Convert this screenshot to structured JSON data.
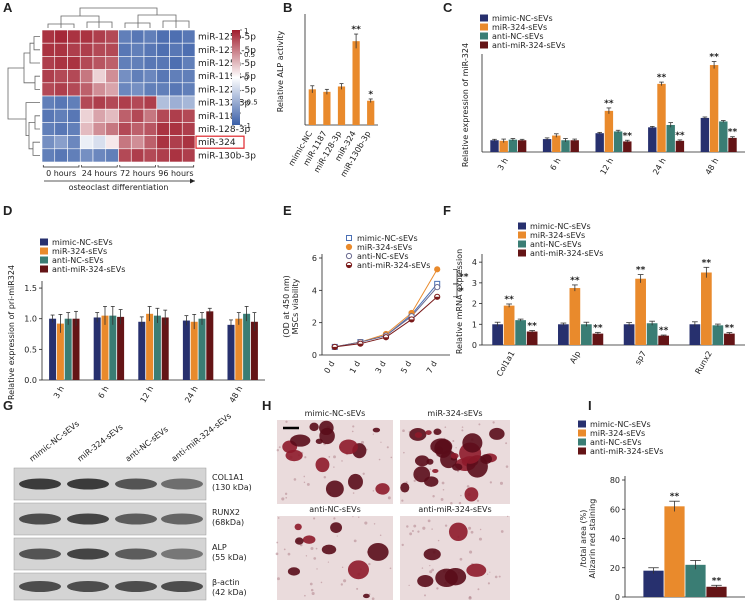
{
  "chart_data": [
    {
      "type": "heatmap",
      "panel": "A",
      "rows": [
        "miR-125b-5p",
        "miR-1231-5p",
        "miR-125a-5p",
        "miR-1198-5p",
        "miR-1224-5p",
        "miR-132-3p",
        "miR-1187",
        "miR-128-3p",
        "miR-324",
        "miR-130b-3p"
      ],
      "categories": [
        null,
        "0 hours",
        null,
        null,
        "24 hours",
        null,
        null,
        "72 hours",
        null,
        null,
        "96 hours",
        null
      ],
      "xlabel": "osteoclast differentiation",
      "z": [
        [
          0.9,
          0.95,
          0.9,
          0.9,
          0.85,
          0.8,
          -0.8,
          -0.85,
          -0.8,
          -0.9,
          -0.9,
          -0.85
        ],
        [
          0.9,
          0.9,
          0.85,
          0.85,
          0.8,
          0.8,
          -0.85,
          -0.8,
          -0.85,
          -0.9,
          -0.85,
          -0.9
        ],
        [
          0.85,
          0.9,
          0.9,
          0.8,
          0.75,
          0.7,
          -0.8,
          -0.8,
          -0.85,
          -0.85,
          -0.9,
          -0.8
        ],
        [
          0.85,
          0.8,
          0.8,
          0.6,
          0.2,
          0.5,
          -0.7,
          -0.8,
          -0.75,
          -0.85,
          -0.8,
          -0.8
        ],
        [
          0.8,
          0.85,
          0.8,
          0.7,
          0.5,
          0.4,
          -0.75,
          -0.7,
          -0.8,
          -0.8,
          -0.85,
          -0.8
        ],
        [
          -0.8,
          -0.85,
          -0.8,
          0.8,
          0.85,
          0.8,
          0.85,
          0.8,
          0.85,
          -0.4,
          -0.5,
          -0.45
        ],
        [
          -0.85,
          -0.8,
          -0.85,
          0.2,
          0.4,
          0.3,
          0.7,
          0.8,
          0.6,
          0.8,
          0.85,
          0.8
        ],
        [
          -0.8,
          -0.85,
          -0.8,
          0.3,
          0.5,
          0.6,
          0.8,
          0.7,
          0.75,
          0.9,
          0.9,
          0.85
        ],
        [
          -0.7,
          -0.6,
          -0.75,
          -0.1,
          -0.2,
          0.1,
          0.6,
          0.5,
          0.7,
          0.9,
          0.85,
          0.9
        ],
        [
          -0.8,
          -0.85,
          -0.8,
          -0.7,
          -0.75,
          -0.8,
          0.8,
          0.85,
          0.8,
          0.85,
          0.9,
          0.85
        ]
      ],
      "zlim": [
        -1,
        1
      ],
      "zticks": [
        1,
        0.5,
        0,
        -0.5,
        -1
      ],
      "colors": [
        "#3a5fa8",
        "#ffffff",
        "#a01c2c"
      ],
      "highlight_row": 8
    },
    {
      "type": "bar",
      "panel": "B",
      "ylabel": "Relative ALP activity",
      "categories": [
        "mimic-NC",
        "miR-1187",
        "miR-128-3p",
        "miR-324",
        "miR-130b-3p"
      ],
      "values": [
        1.0,
        0.93,
        1.08,
        2.35,
        0.68
      ],
      "errors": [
        0.1,
        0.07,
        0.08,
        0.2,
        0.05
      ],
      "annotations": [
        null,
        null,
        null,
        "**",
        "*"
      ],
      "color": "#e98a2c",
      "ylim": [
        0,
        3
      ],
      "xtick_rotation": -60
    },
    {
      "type": "bar",
      "panel": "C",
      "ylabel": "Relative expression of miR-324",
      "categories": [
        "3 h",
        "6 h",
        "12 h",
        "24 h",
        "48 h"
      ],
      "ylim": [
        0,
        8
      ],
      "xtick_rotation": -60,
      "legend": "upper-left",
      "series": [
        {
          "name": "mimic-NC-sEVs",
          "color": "#27306e",
          "values": [
            1.0,
            1.1,
            1.6,
            2.1,
            2.9
          ],
          "errors": [
            0.08,
            0.1,
            0.07,
            0.08,
            0.08
          ]
        },
        {
          "name": "miR-324-sEVs",
          "color": "#e98a2c",
          "values": [
            0.95,
            1.4,
            3.5,
            5.8,
            7.4
          ],
          "errors": [
            0.15,
            0.15,
            0.25,
            0.15,
            0.3
          ],
          "annotations": [
            null,
            null,
            "**",
            "**",
            "**"
          ]
        },
        {
          "name": "anti-NC-sEVs",
          "color": "#3a7d74",
          "values": [
            1.05,
            1.0,
            1.75,
            2.3,
            2.6
          ],
          "errors": [
            0.1,
            0.15,
            0.1,
            0.2,
            0.08
          ]
        },
        {
          "name": "anti-miR-324-sEVs",
          "color": "#641416",
          "values": [
            1.0,
            1.0,
            0.9,
            0.95,
            1.2
          ],
          "errors": [
            0.08,
            0.1,
            0.1,
            0.08,
            0.1
          ],
          "annotations": [
            null,
            null,
            "**",
            "**",
            "**"
          ]
        }
      ]
    },
    {
      "type": "bar",
      "panel": "D",
      "ylabel": "Relative expression of pri-miR324",
      "categories": [
        "3 h",
        "6 h",
        "12 h",
        "24 h",
        "48 h"
      ],
      "ylim": [
        0,
        1.55
      ],
      "yticks": [
        {
          "value": 0,
          "label": "0.0"
        },
        0.5,
        {
          "value": 1,
          "label": "1.0"
        },
        1.5
      ],
      "xtick_rotation": -60,
      "legend": "upper-left",
      "series": [
        {
          "name": "mimic-NC-sEVs",
          "color": "#27306e",
          "values": [
            1.0,
            1.02,
            0.95,
            0.97,
            0.9
          ],
          "errors": [
            0.06,
            0.08,
            0.08,
            0.08,
            0.08
          ]
        },
        {
          "name": "miR-324-sEVs",
          "color": "#e98a2c",
          "values": [
            0.92,
            1.05,
            1.08,
            0.95,
            1.0
          ],
          "errors": [
            0.15,
            0.15,
            0.12,
            0.12,
            0.1
          ]
        },
        {
          "name": "anti-NC-sEVs",
          "color": "#3a7d74",
          "values": [
            1.0,
            1.05,
            1.05,
            1.0,
            1.08
          ],
          "errors": [
            0.1,
            0.15,
            0.12,
            0.1,
            0.12
          ]
        },
        {
          "name": "anti-miR-324-sEVs",
          "color": "#641416",
          "values": [
            1.0,
            1.03,
            1.02,
            1.12,
            0.95
          ],
          "errors": [
            0.12,
            0.12,
            0.12,
            0.05,
            0.15
          ]
        }
      ]
    },
    {
      "type": "line",
      "panel": "E",
      "ylabel": [
        "MSCs viability",
        "(OD at 450 nm)"
      ],
      "categories": [
        "0 d",
        "1 d",
        "3 d",
        "5 d",
        "7 d"
      ],
      "ylim": [
        0,
        6
      ],
      "yticks": [
        0,
        2,
        4,
        6
      ],
      "xtick_rotation": -60,
      "legend": "upper-left",
      "annotations": [
        "**",
        "*"
      ],
      "series": [
        {
          "name": "mimic-NC-sEVs",
          "color": "#4a6fb5",
          "marker": "square-open",
          "values": [
            0.5,
            0.8,
            1.2,
            2.5,
            4.4
          ]
        },
        {
          "name": "miR-324-sEVs",
          "color": "#e98a2c",
          "marker": "circle-filled",
          "values": [
            0.5,
            0.8,
            1.3,
            2.6,
            5.3
          ]
        },
        {
          "name": "anti-NC-sEVs",
          "color": "#6a6a90",
          "marker": "circle-open",
          "values": [
            0.5,
            0.8,
            1.2,
            2.4,
            4.2
          ]
        },
        {
          "name": "anti-miR-324-sEVs",
          "color": "#7a1a1a",
          "marker": "circle-half",
          "values": [
            0.5,
            0.7,
            1.1,
            2.2,
            3.6
          ]
        }
      ]
    },
    {
      "type": "bar",
      "panel": "F",
      "ylabel": "Relative mRNA expression",
      "categories": [
        "Col1a1",
        "Alp",
        "sp7",
        "Runx2"
      ],
      "ylim": [
        0,
        4.2
      ],
      "yticks": [
        0,
        1,
        2,
        3,
        4
      ],
      "xtick_rotation": -60,
      "legend": "upper-left",
      "series": [
        {
          "name": "mimic-NC-sEVs",
          "color": "#27306e",
          "values": [
            1.0,
            1.0,
            1.0,
            1.0
          ],
          "errors": [
            0.1,
            0.06,
            0.08,
            0.12
          ]
        },
        {
          "name": "miR-324-sEVs",
          "color": "#e98a2c",
          "values": [
            1.9,
            2.75,
            3.2,
            3.5
          ],
          "errors": [
            0.08,
            0.15,
            0.2,
            0.25
          ],
          "annotations": [
            "**",
            "**",
            "**",
            "**"
          ]
        },
        {
          "name": "anti-NC-sEVs",
          "color": "#3a7d74",
          "values": [
            1.2,
            1.0,
            1.05,
            0.95
          ],
          "errors": [
            0.05,
            0.1,
            0.1,
            0.06
          ]
        },
        {
          "name": "anti-miR-324-sEVs",
          "color": "#641416",
          "values": [
            0.65,
            0.55,
            0.45,
            0.55
          ],
          "errors": [
            0.05,
            0.06,
            0.03,
            0.05
          ],
          "annotations": [
            "**",
            "**",
            "**",
            "**"
          ]
        }
      ]
    },
    {
      "type": "bar",
      "panel": "I",
      "ylabel": [
        "Alizarin red staining",
        "/total area (%)"
      ],
      "categories": [
        null
      ],
      "ylim": [
        0,
        80
      ],
      "yticks": [
        0,
        20,
        40,
        60,
        80
      ],
      "legend": "upper-left",
      "series": [
        {
          "name": "mimic-NC-sEVs",
          "color": "#27306e",
          "values": [
            18
          ],
          "errors": [
            2
          ]
        },
        {
          "name": "miR-324-sEVs",
          "color": "#e98a2c",
          "values": [
            62
          ],
          "errors": [
            3.5
          ],
          "annotations": [
            "**"
          ]
        },
        {
          "name": "anti-NC-sEVs",
          "color": "#3a7d74",
          "values": [
            22
          ],
          "errors": [
            3
          ]
        },
        {
          "name": "anti-miR-324-sEVs",
          "color": "#641416",
          "values": [
            7
          ],
          "errors": [
            1
          ],
          "annotations": [
            "**"
          ]
        }
      ]
    }
  ],
  "blot": {
    "panel": "G",
    "lanes": [
      "mimic-NC-sEVs",
      "miR-324-sEVs",
      "anti-NC-sEVs",
      "anti-miR-324-sEVs"
    ],
    "bands": [
      {
        "name": "COL1A1",
        "size": "(130 kDa)"
      },
      {
        "name": "RUNX2",
        "size": "(68kDa)"
      },
      {
        "name": "ALP",
        "size": "(55 kDa)"
      },
      {
        "name": "β-actin",
        "size": "(42 kDa)"
      }
    ]
  },
  "staining": {
    "panel": "H",
    "labels": [
      "mimic-NC-sEVs",
      "miR-324-sEVs",
      "anti-NC-sEVs",
      "anti-miR-324-sEVs"
    ]
  }
}
